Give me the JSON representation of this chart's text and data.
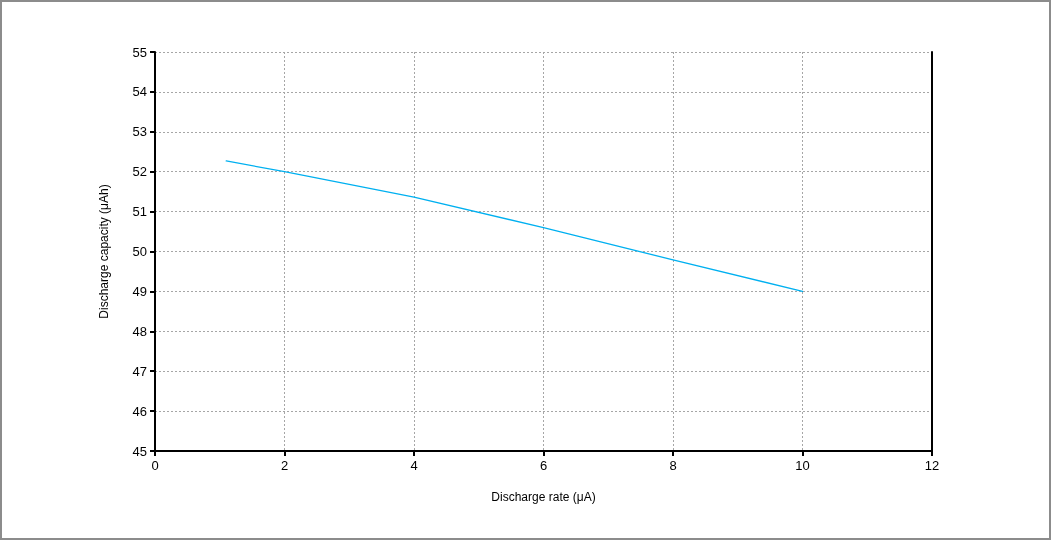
{
  "chart_data": {
    "type": "line",
    "xlabel": "Discharge rate (μA)",
    "ylabel": "Discharge capacity (μAh)",
    "x": [
      1.1,
      2,
      4,
      6,
      8,
      10
    ],
    "series": [
      {
        "color": "#00b0f0",
        "values": [
          52.27,
          52.0,
          51.36,
          50.6,
          49.79,
          49.0
        ]
      }
    ],
    "xlim": [
      0,
      12
    ],
    "xticks": [
      0,
      2,
      4,
      6,
      8,
      10,
      12
    ],
    "ylim": [
      45,
      55
    ],
    "yticks": [
      45,
      46,
      47,
      48,
      49,
      50,
      51,
      52,
      53,
      54,
      55
    ],
    "grid": true,
    "marker": "none",
    "line_style": "solid"
  }
}
